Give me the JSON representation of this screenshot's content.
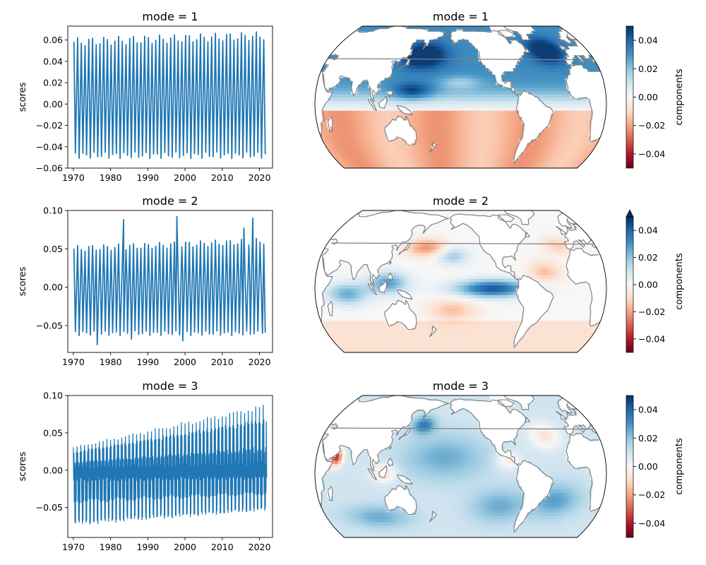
{
  "chart_data": [
    {
      "type": "line",
      "panel": "scores",
      "title": "mode = 1",
      "ylabel": "scores",
      "xlabel": "",
      "xlim": [
        1968.5,
        2023.5
      ],
      "ylim": [
        -0.06,
        0.073
      ],
      "xticks": [
        1970,
        1980,
        1990,
        2000,
        2010,
        2020
      ],
      "yticks": [
        -0.06,
        -0.04,
        -0.02,
        0.0,
        0.02,
        0.04,
        0.06
      ],
      "ytick_labels": [
        "−0.06",
        "−0.04",
        "−0.02",
        "0.00",
        "0.02",
        "0.04",
        "0.06"
      ],
      "color": "#1f77b4",
      "series": [
        {
          "x_start": 1970.0,
          "x_end": 2021.9,
          "cycles_per_year": 1,
          "peak_start": 0.058,
          "peak_end": 0.064,
          "trough_start": -0.048,
          "trough_end": -0.048
        }
      ]
    },
    {
      "type": "heatmap",
      "panel": "components",
      "title": "mode = 1",
      "projection": "robinson",
      "colormap": "RdBu",
      "colorbar_label": "components",
      "colorbar_range": [
        -0.05,
        0.05
      ],
      "colorbar_ticks": [
        -0.04,
        -0.02,
        0.0,
        0.02,
        0.04
      ],
      "colorbar_tick_labels": [
        "−0.04",
        "−0.02",
        "0.00",
        "0.02",
        "0.04"
      ],
      "colorbar_extend": "neither"
    },
    {
      "type": "line",
      "panel": "scores",
      "title": "mode = 2",
      "ylabel": "scores",
      "xlabel": "",
      "xlim": [
        1968.5,
        2023.5
      ],
      "ylim": [
        -0.085,
        0.1
      ],
      "xticks": [
        1970,
        1980,
        1990,
        2000,
        2010,
        2020
      ],
      "yticks": [
        -0.05,
        0.0,
        0.05,
        0.1
      ],
      "ytick_labels": [
        "−0.05",
        "0.00",
        "0.05",
        "0.10"
      ],
      "color": "#1f77b4",
      "series": [
        {
          "x_start": 1970.0,
          "x_end": 2021.9,
          "cycles_per_year": 1,
          "peak_start": 0.05,
          "peak_end": 0.06,
          "trough_start": -0.06,
          "trough_end": -0.06,
          "spikes": [
            [
              1983.5,
              0.088
            ],
            [
              1997.8,
              0.092
            ],
            [
              2015.8,
              0.077
            ],
            [
              2018.2,
              0.09
            ]
          ],
          "dips": [
            [
              1976.4,
              -0.075
            ],
            [
              1985.6,
              -0.068
            ],
            [
              1999.4,
              -0.07
            ],
            [
              2020.8,
              -0.06
            ]
          ]
        }
      ]
    },
    {
      "type": "heatmap",
      "panel": "components",
      "title": "mode = 2",
      "projection": "robinson",
      "colormap": "RdBu",
      "colorbar_label": "components",
      "colorbar_range": [
        -0.05,
        0.05
      ],
      "colorbar_ticks": [
        -0.04,
        -0.02,
        0.0,
        0.02,
        0.04
      ],
      "colorbar_tick_labels": [
        "−0.04",
        "−0.02",
        "0.00",
        "0.02",
        "0.04"
      ],
      "colorbar_extend": "max"
    },
    {
      "type": "line",
      "panel": "scores",
      "title": "mode = 3",
      "ylabel": "scores",
      "xlabel": "",
      "xlim": [
        1968.5,
        2023.5
      ],
      "ylim": [
        -0.09,
        0.1
      ],
      "xticks": [
        1970,
        1980,
        1990,
        2000,
        2010,
        2020
      ],
      "yticks": [
        -0.05,
        0.0,
        0.05,
        0.1
      ],
      "ytick_labels": [
        "−0.05",
        "0.00",
        "0.05",
        "0.10"
      ],
      "color": "#1f77b4",
      "series": [
        {
          "x_start": 1970.0,
          "x_end": 2021.9,
          "cycles_per_year": 12,
          "upper_start": 0.03,
          "upper_end": 0.085,
          "lower_start": -0.075,
          "lower_end": -0.055
        }
      ]
    },
    {
      "type": "heatmap",
      "panel": "components",
      "title": "mode = 3",
      "projection": "robinson",
      "colormap": "RdBu",
      "colorbar_label": "components",
      "colorbar_range": [
        -0.05,
        0.05
      ],
      "colorbar_ticks": [
        -0.04,
        -0.02,
        0.0,
        0.02,
        0.04
      ],
      "colorbar_tick_labels": [
        "−0.04",
        "−0.02",
        "0.00",
        "0.02",
        "0.04"
      ],
      "colorbar_extend": "neither"
    }
  ],
  "colors": {
    "line": "#1f77b4",
    "coastline": "#808080",
    "land": "#ffffff",
    "cmap_stops": [
      "#67001f",
      "#b2182b",
      "#d6604d",
      "#f4a582",
      "#fddbc7",
      "#f7f7f7",
      "#d1e5f0",
      "#92c5de",
      "#4393c3",
      "#2166ac",
      "#053061"
    ]
  }
}
